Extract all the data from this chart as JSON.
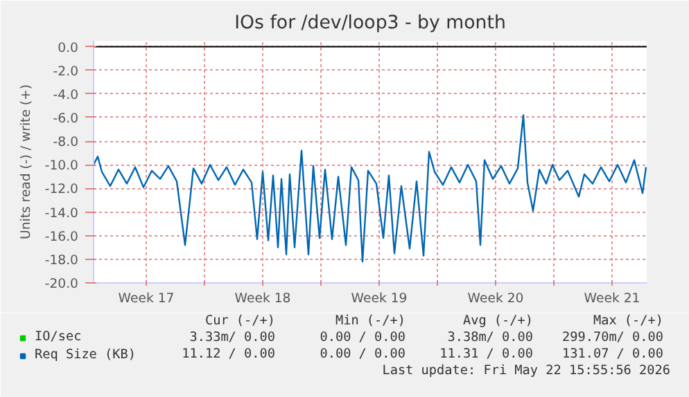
{
  "chart_data": {
    "type": "line",
    "title": "IOs for /dev/loop3 - by month",
    "ylabel": "Units read (-) / write (+)",
    "xlim": [
      "2026-04-20T08:00",
      "2026-05-23T14:00"
    ],
    "xticks": [
      {
        "value": "2026-04-23T12:00",
        "label": "Week 17"
      },
      {
        "value": "2026-04-27",
        "label": null
      },
      {
        "value": "2026-04-30T12:00",
        "label": "Week 18"
      },
      {
        "value": "2026-05-04",
        "label": null
      },
      {
        "value": "2026-05-07T12:00",
        "label": "Week 19"
      },
      {
        "value": "2026-05-11",
        "label": null
      },
      {
        "value": "2026-05-14T12:00",
        "label": "Week 20"
      },
      {
        "value": "2026-05-18",
        "label": null
      },
      {
        "value": "2026-05-21T12:00",
        "label": "Week 21"
      }
    ],
    "ylim": [
      -20,
      0.5
    ],
    "yticks": [
      {
        "value": 0,
        "label": "0.0"
      },
      {
        "value": -2,
        "label": "-2.0"
      },
      {
        "value": -4,
        "label": "-4.0"
      },
      {
        "value": -6,
        "label": "-6.0"
      },
      {
        "value": -8,
        "label": "-8.0"
      },
      {
        "value": -10,
        "label": "-10.0"
      },
      {
        "value": -12,
        "label": "-12.0"
      },
      {
        "value": -14,
        "label": "-14.0"
      },
      {
        "value": -16,
        "label": "-16.0"
      },
      {
        "value": -18,
        "label": "-18.0"
      },
      {
        "value": -20,
        "label": "-20.0"
      }
    ],
    "grid": true,
    "legend": "bottom left",
    "ref_lines": [
      {
        "axis": "y",
        "value": 0,
        "color": "#000000"
      }
    ],
    "series": [
      {
        "name": "IO/sec",
        "color": "#00cc00"
      },
      {
        "name": "Req Size (KB)",
        "color": "#0066b3",
        "x": [
          "2026-04-20T08:00",
          "2026-04-20T14:00",
          "2026-04-20T20:00",
          "2026-04-21T08:00",
          "2026-04-21T20:00",
          "2026-04-22T08:00",
          "2026-04-22T20:00",
          "2026-04-23T08:00",
          "2026-04-23T20:00",
          "2026-04-24T08:00",
          "2026-04-24T20:00",
          "2026-04-25T08:00",
          "2026-04-25T20:00",
          "2026-04-26T08:00",
          "2026-04-26T20:00",
          "2026-04-27T08:00",
          "2026-04-27T20:00",
          "2026-04-28T08:00",
          "2026-04-28T20:00",
          "2026-04-29T08:00",
          "2026-04-29T20:00",
          "2026-04-30T04:00",
          "2026-04-30T12:00",
          "2026-04-30T20:00",
          "2026-05-01T03:00",
          "2026-05-01T10:00",
          "2026-05-01T15:00",
          "2026-05-01T22:00",
          "2026-05-02T03:00",
          "2026-05-02T10:00",
          "2026-05-02T20:00",
          "2026-05-03T06:00",
          "2026-05-03T13:00",
          "2026-05-03T22:00",
          "2026-05-04T06:00",
          "2026-05-04T16:00",
          "2026-05-05T01:00",
          "2026-05-05T12:00",
          "2026-05-05T20:00",
          "2026-05-06T06:00",
          "2026-05-06T12:00",
          "2026-05-06T20:00",
          "2026-05-07T08:00",
          "2026-05-07T18:00",
          "2026-05-08T02:00",
          "2026-05-08T10:00",
          "2026-05-08T20:00",
          "2026-05-09T08:00",
          "2026-05-09T18:00",
          "2026-05-10T04:00",
          "2026-05-10T12:00",
          "2026-05-10T20:00",
          "2026-05-11T08:00",
          "2026-05-11T20:00",
          "2026-05-12T08:00",
          "2026-05-12T20:00",
          "2026-05-13T08:00",
          "2026-05-13T14:00",
          "2026-05-13T20:00",
          "2026-05-14T08:00",
          "2026-05-14T20:00",
          "2026-05-15T08:00",
          "2026-05-15T20:00",
          "2026-05-16T04:00",
          "2026-05-16T10:00",
          "2026-05-16T18:00",
          "2026-05-17T03:00",
          "2026-05-17T13:00",
          "2026-05-17T22:00",
          "2026-05-18T08:00",
          "2026-05-18T20:00",
          "2026-05-19T12:00",
          "2026-05-19T20:00",
          "2026-05-20T08:00",
          "2026-05-20T20:00",
          "2026-05-21T08:00",
          "2026-05-21T20:00",
          "2026-05-22T08:00",
          "2026-05-22T20:00",
          "2026-05-23T08:00",
          "2026-05-23T13:00"
        ],
        "values": [
          -10.0,
          -9.3,
          -10.6,
          -11.8,
          -10.4,
          -11.6,
          -10.2,
          -11.9,
          -10.5,
          -11.2,
          -10.1,
          -11.4,
          -16.8,
          -10.3,
          -11.6,
          -10.0,
          -11.3,
          -10.2,
          -11.7,
          -10.4,
          -11.5,
          -16.3,
          -10.6,
          -16.4,
          -10.9,
          -17.0,
          -11.2,
          -17.6,
          -10.8,
          -17.0,
          -8.8,
          -17.6,
          -10.1,
          -16.2,
          -10.4,
          -16.3,
          -11.0,
          -16.8,
          -10.2,
          -11.3,
          -18.2,
          -10.5,
          -11.6,
          -16.2,
          -10.9,
          -17.5,
          -11.8,
          -17.1,
          -11.4,
          -17.7,
          -8.9,
          -10.6,
          -11.7,
          -10.2,
          -11.5,
          -10.0,
          -11.4,
          -16.8,
          -9.6,
          -11.2,
          -10.1,
          -11.6,
          -10.3,
          -5.8,
          -11.5,
          -13.9,
          -10.4,
          -11.6,
          -10.0,
          -11.3,
          -10.5,
          -12.7,
          -10.8,
          -11.6,
          -10.2,
          -11.4,
          -10.0,
          -11.5,
          -9.6,
          -12.4,
          -10.2
        ]
      }
    ],
    "annotations": [
      "Cur (-/+)",
      "Min (-/+)",
      "Avg (-/+)",
      "Max (-/+)",
      "3.33m/ 0.00",
      "0.00 / 0.00",
      "3.38m/ 0.00",
      "299.70m/ 0.00",
      "11.12 / 0.00",
      "0.00 / 0.00",
      "11.31 / 0.00",
      "131.07 / 0.00",
      "Last update: Fri May 22 15:55:56 2026"
    ]
  }
}
